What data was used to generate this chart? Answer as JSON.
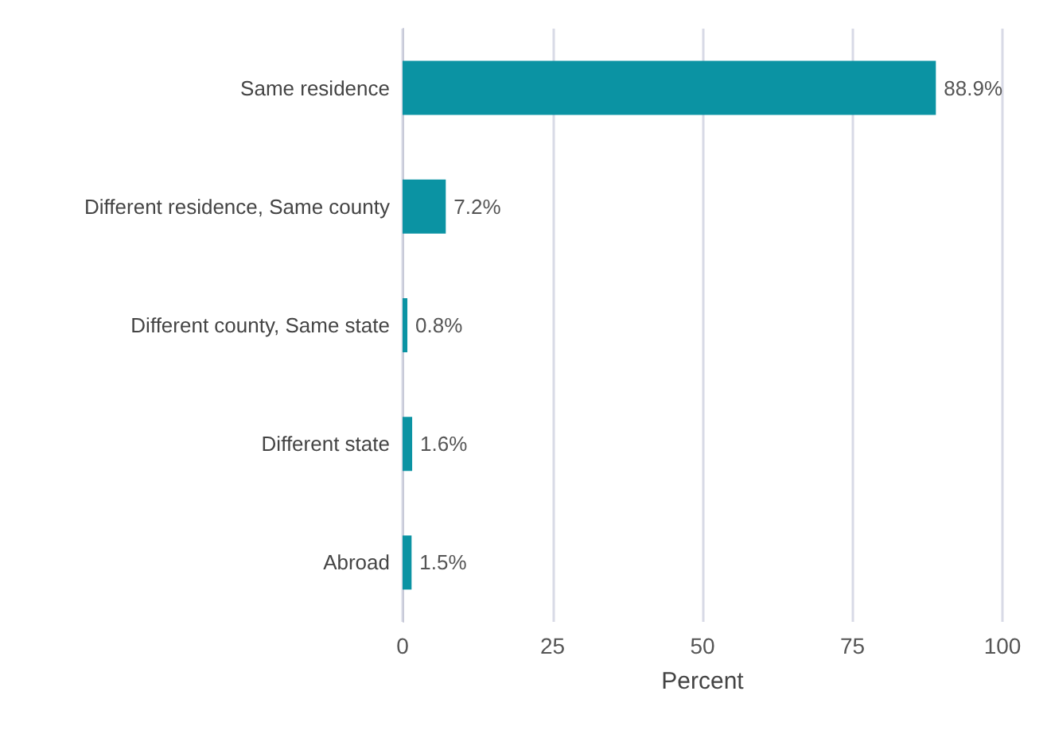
{
  "chart_data": {
    "type": "bar",
    "orientation": "horizontal",
    "xlabel": "Percent",
    "categories": [
      "Same residence",
      "Different residence, Same county",
      "Different county, Same state",
      "Different state",
      "Abroad"
    ],
    "values": [
      88.9,
      7.2,
      0.8,
      1.6,
      1.5
    ],
    "value_labels": [
      "88.9%",
      "7.2%",
      "0.8%",
      "1.6%",
      "1.5%"
    ],
    "color": "#0b93a3",
    "xlim": [
      0,
      100
    ],
    "xticks": [
      0,
      25,
      50,
      75,
      100
    ],
    "grid": "x"
  }
}
